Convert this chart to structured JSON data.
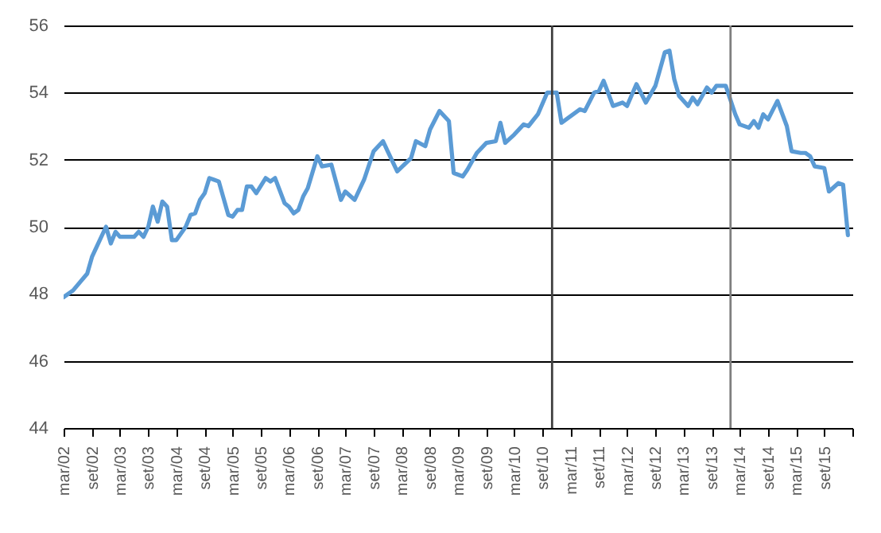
{
  "chart_data": {
    "type": "line",
    "x": [
      "2002-03",
      "2002-05",
      "2002-08",
      "2002-09",
      "2002-10",
      "2002-12",
      "2003-01",
      "2003-02",
      "2003-03",
      "2003-06",
      "2003-07",
      "2003-08",
      "2003-09",
      "2003-10",
      "2003-11",
      "2003-12",
      "2004-01",
      "2004-02",
      "2004-03",
      "2004-05",
      "2004-06",
      "2004-07",
      "2004-08",
      "2004-09",
      "2004-10",
      "2004-11",
      "2004-12",
      "2005-01",
      "2005-02",
      "2005-03",
      "2005-04",
      "2005-05",
      "2005-06",
      "2005-07",
      "2005-08",
      "2005-10",
      "2005-11",
      "2005-12",
      "2006-02",
      "2006-03",
      "2006-04",
      "2006-05",
      "2006-06",
      "2006-07",
      "2006-09",
      "2006-10",
      "2006-12",
      "2007-02",
      "2007-03",
      "2007-05",
      "2007-07",
      "2007-09",
      "2007-11",
      "2007-12",
      "2008-02",
      "2008-05",
      "2008-06",
      "2008-08",
      "2008-09",
      "2008-11",
      "2009-01",
      "2009-02",
      "2009-04",
      "2009-05",
      "2009-07",
      "2009-09",
      "2009-11",
      "2009-12",
      "2010-01",
      "2010-03",
      "2010-05",
      "2010-06",
      "2010-08",
      "2010-10",
      "2010-12",
      "2011-01",
      "2011-04",
      "2011-05",
      "2011-06",
      "2011-08",
      "2011-09",
      "2011-10",
      "2011-12",
      "2012-02",
      "2012-03",
      "2012-05",
      "2012-07",
      "2012-09",
      "2012-11",
      "2012-12",
      "2013-01",
      "2013-02",
      "2013-04",
      "2013-05",
      "2013-06",
      "2013-08",
      "2013-09",
      "2013-10",
      "2013-12",
      "2014-02",
      "2014-03",
      "2014-05",
      "2014-06",
      "2014-07",
      "2014-08",
      "2014-09",
      "2014-11",
      "2015-01",
      "2015-02",
      "2015-04",
      "2015-05",
      "2015-06",
      "2015-07",
      "2015-09",
      "2015-10",
      "2015-12",
      "2016-01",
      "2016-02"
    ],
    "series": [
      {
        "color": "#5b9bd5",
        "values": [
          47.9,
          48.1,
          48.6,
          49.1,
          49.4,
          50.0,
          49.5,
          49.85,
          49.7,
          49.7,
          49.85,
          49.7,
          50.0,
          50.6,
          50.15,
          50.75,
          50.6,
          49.6,
          49.6,
          50.0,
          50.35,
          50.4,
          50.8,
          51.0,
          51.45,
          51.4,
          51.35,
          50.85,
          50.35,
          50.3,
          50.5,
          50.5,
          51.2,
          51.2,
          51.0,
          51.45,
          51.35,
          51.45,
          50.7,
          50.6,
          50.4,
          50.5,
          50.9,
          51.15,
          52.1,
          51.8,
          51.85,
          50.8,
          51.05,
          50.8,
          51.4,
          52.25,
          52.55,
          52.25,
          51.65,
          52.05,
          52.55,
          52.4,
          52.9,
          53.45,
          53.15,
          51.6,
          51.5,
          51.7,
          52.2,
          52.5,
          52.55,
          53.1,
          52.5,
          52.75,
          53.05,
          53.0,
          53.35,
          54.0,
          54.0,
          53.1,
          53.4,
          53.5,
          53.45,
          54.0,
          54.05,
          54.35,
          53.6,
          53.7,
          53.6,
          54.25,
          53.7,
          54.2,
          55.2,
          55.25,
          54.4,
          53.9,
          53.6,
          53.85,
          53.65,
          54.15,
          54.0,
          54.2,
          54.2,
          53.35,
          53.05,
          52.95,
          53.15,
          52.95,
          53.35,
          53.2,
          53.75,
          53.0,
          52.25,
          52.2,
          52.2,
          52.1,
          51.8,
          51.75,
          51.05,
          51.3,
          51.25,
          49.75
        ]
      }
    ],
    "xlim": [
      "2002-03",
      "2016-03"
    ],
    "xticks": [
      {
        "value": "2002-03",
        "label": "mar/02"
      },
      {
        "value": "2002-09",
        "label": "set/02"
      },
      {
        "value": "2003-03",
        "label": "mar/03"
      },
      {
        "value": "2003-09",
        "label": "set/03"
      },
      {
        "value": "2004-03",
        "label": "mar/04"
      },
      {
        "value": "2004-09",
        "label": "set/04"
      },
      {
        "value": "2005-03",
        "label": "mar/05"
      },
      {
        "value": "2005-09",
        "label": "set/05"
      },
      {
        "value": "2006-03",
        "label": "mar/06"
      },
      {
        "value": "2006-09",
        "label": "set/06"
      },
      {
        "value": "2007-03",
        "label": "mar/07"
      },
      {
        "value": "2007-09",
        "label": "set/07"
      },
      {
        "value": "2008-03",
        "label": "mar/08"
      },
      {
        "value": "2008-09",
        "label": "set/08"
      },
      {
        "value": "2009-03",
        "label": "mar/09"
      },
      {
        "value": "2009-09",
        "label": "set/09"
      },
      {
        "value": "2010-03",
        "label": "mar/10"
      },
      {
        "value": "2010-09",
        "label": "set/10"
      },
      {
        "value": "2011-03",
        "label": "mar/11"
      },
      {
        "value": "2011-09",
        "label": "set/11"
      },
      {
        "value": "2012-03",
        "label": "mar/12"
      },
      {
        "value": "2012-09",
        "label": "set/12"
      },
      {
        "value": "2013-03",
        "label": "mar/13"
      },
      {
        "value": "2013-09",
        "label": "set/13"
      },
      {
        "value": "2014-03",
        "label": "mar/14"
      },
      {
        "value": "2014-09",
        "label": "set/14"
      },
      {
        "value": "2015-03",
        "label": "mar/15"
      },
      {
        "value": "2015-09",
        "label": "set/15"
      },
      {
        "value": "2016-03",
        "label": null
      }
    ],
    "ylim": [
      44,
      56
    ],
    "yticks": [
      44,
      46,
      48,
      50,
      52,
      54,
      56
    ],
    "grid": "y",
    "ref_lines": [
      {
        "axis": "x",
        "value": "2010-11",
        "color": "#404040"
      },
      {
        "axis": "x",
        "value": "2014-01",
        "color": "#7f7f7f"
      }
    ]
  }
}
